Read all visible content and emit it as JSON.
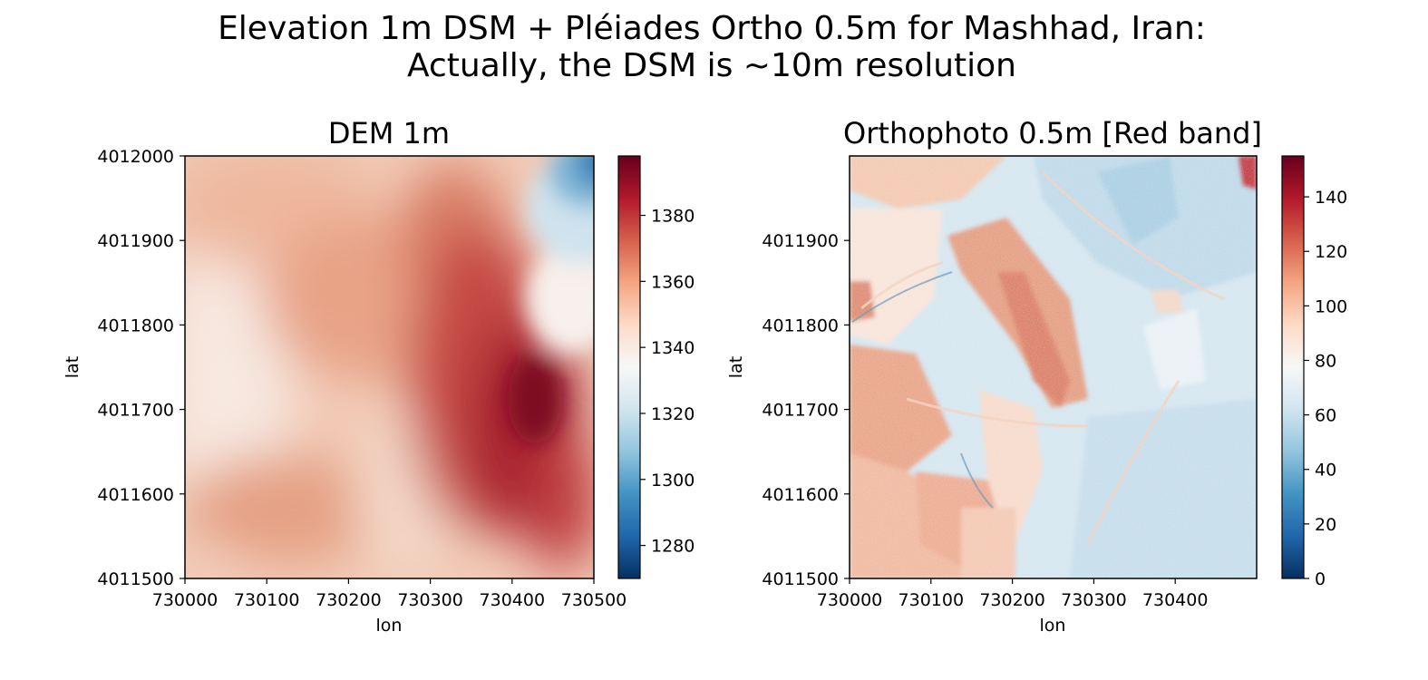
{
  "figure": {
    "suptitle_line1": "Elevation 1m DSM + Pléiades Ortho 0.5m for Mashhad, Iran:",
    "suptitle_line2": "Actually, the DSM is ~10m resolution"
  },
  "chart_data": [
    {
      "type": "heatmap",
      "title": "DEM 1m",
      "xlabel": "lon",
      "ylabel": "lat",
      "xlim": [
        730000,
        730500
      ],
      "ylim": [
        4011500,
        4012000
      ],
      "xticks": [
        730000,
        730100,
        730200,
        730300,
        730400,
        730500
      ],
      "xtick_labels": [
        "730000",
        "730100",
        "730200",
        "730300",
        "730400",
        "730500"
      ],
      "yticks": [
        4011500,
        4011600,
        4011700,
        4011800,
        4011900,
        4012000
      ],
      "ytick_labels": [
        "4011500",
        "4011600",
        "4011700",
        "4011800",
        "4011900",
        "4012000"
      ],
      "colormap": "RdBu_r",
      "colorbar": {
        "vmin": 1270,
        "vmax": 1398,
        "ticks": [
          1280,
          1300,
          1320,
          1340,
          1360,
          1380
        ],
        "tick_labels": [
          "1280",
          "1300",
          "1320",
          "1340",
          "1360",
          "1380"
        ]
      },
      "grid": false,
      "description_values": {
        "west_edge_approx": 1340,
        "center_approx": 1360,
        "ridge_peak_approx": 1398,
        "northeast_corner_approx": 1280
      }
    },
    {
      "type": "heatmap",
      "title": "Orthophoto 0.5m [Red band]",
      "xlabel": "lon",
      "ylabel": "lat",
      "xlim": [
        730000,
        730500
      ],
      "ylim": [
        4011500,
        4012000
      ],
      "xticks": [
        730000,
        730100,
        730200,
        730300,
        730400
      ],
      "xtick_labels": [
        "730000",
        "730100",
        "730200",
        "730300",
        "730400"
      ],
      "yticks": [
        4011500,
        4011600,
        4011700,
        4011800,
        4011900
      ],
      "ytick_labels": [
        "4011500",
        "4011600",
        "4011700",
        "4011800",
        "4011900"
      ],
      "colormap": "RdBu_r",
      "colorbar": {
        "vmin": 0,
        "vmax": 155,
        "ticks": [
          0,
          20,
          40,
          60,
          80,
          100,
          120,
          140
        ],
        "tick_labels": [
          "0",
          "20",
          "40",
          "60",
          "80",
          "100",
          "120",
          "140"
        ]
      },
      "grid": false
    }
  ]
}
